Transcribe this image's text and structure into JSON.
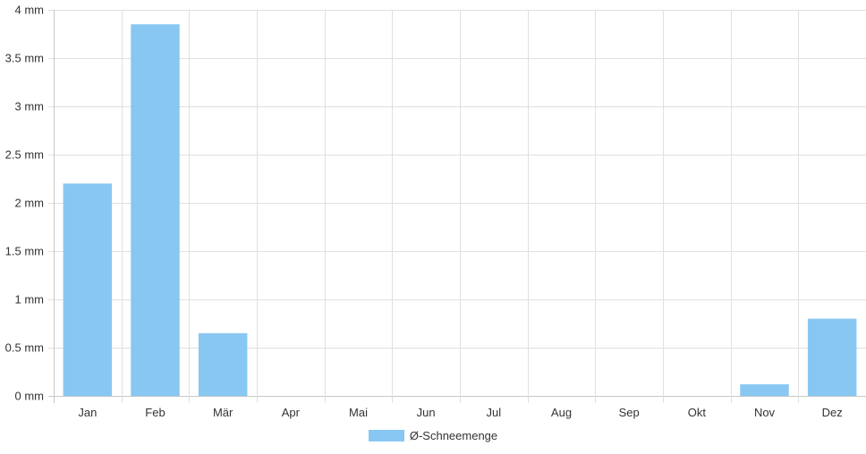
{
  "chart_data": {
    "type": "bar",
    "categories": [
      "Jan",
      "Feb",
      "Mär",
      "Apr",
      "Mai",
      "Jun",
      "Jul",
      "Aug",
      "Sep",
      "Okt",
      "Nov",
      "Dez"
    ],
    "series": [
      {
        "name": "Ø-Schneemenge",
        "values": [
          2.2,
          3.85,
          0.65,
          0,
          0,
          0,
          0,
          0,
          0,
          0,
          0.12,
          0.8
        ],
        "color": "#88c7f2"
      }
    ],
    "y_ticks": [
      {
        "value": 0,
        "label": "0 mm"
      },
      {
        "value": 0.5,
        "label": "0.5 mm"
      },
      {
        "value": 1,
        "label": "1 mm"
      },
      {
        "value": 1.5,
        "label": "1.5 mm"
      },
      {
        "value": 2,
        "label": "2 mm"
      },
      {
        "value": 2.5,
        "label": "2.5 mm"
      },
      {
        "value": 3,
        "label": "3 mm"
      },
      {
        "value": 3.5,
        "label": "3.5 mm"
      },
      {
        "value": 4,
        "label": "4 mm"
      }
    ],
    "ylim": [
      0,
      4
    ],
    "grid": true,
    "legend_position": "bottom",
    "colors": {
      "grid": "#e0e0e0",
      "axis": "#c8c8c8",
      "text": "#333333"
    }
  }
}
